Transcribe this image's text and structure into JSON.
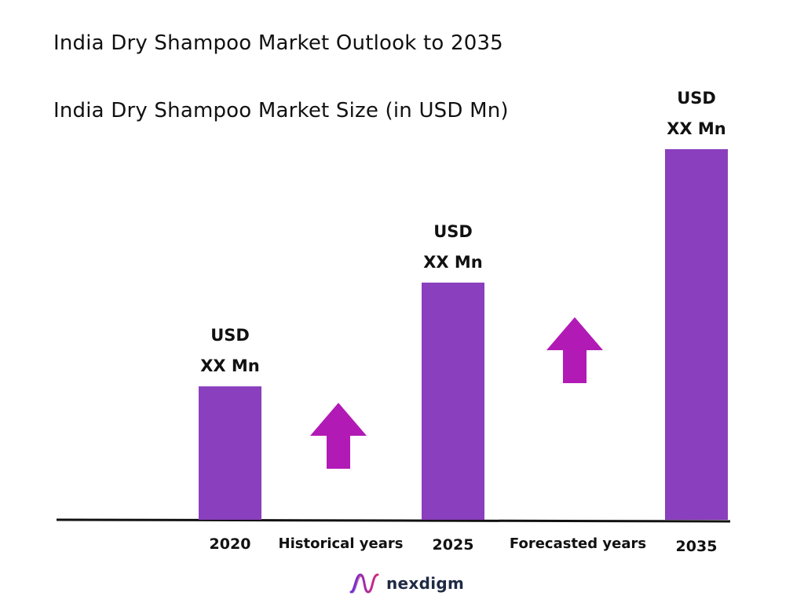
{
  "title": "India Dry Shampoo Market Outlook to 2035",
  "subtitle": "India Dry Shampoo Market Size (in USD Mn)",
  "chart_data": {
    "type": "bar",
    "categories": [
      "2020",
      "2025",
      "2035"
    ],
    "values": [
      0.36,
      0.64,
      1.0
    ],
    "value_note": "relative heights; actual values not shown (XX)",
    "bar_labels": [
      [
        "USD",
        "XX Mn"
      ],
      [
        "USD",
        "XX Mn"
      ],
      [
        "USD",
        "XX Mn"
      ]
    ],
    "period_labels": [
      "Historical years",
      "Forecasted years"
    ],
    "ylim": [
      0,
      1
    ],
    "grid": false,
    "legend": "none",
    "colors": {
      "bar": "#8a3fbe",
      "arrow": "#b21ab6",
      "axis": "#111111"
    }
  },
  "logo": {
    "text": "nexdigm",
    "icon": "nexdigm-wave-icon",
    "icon_colors": [
      "#6b2fd6",
      "#d6297a"
    ]
  }
}
